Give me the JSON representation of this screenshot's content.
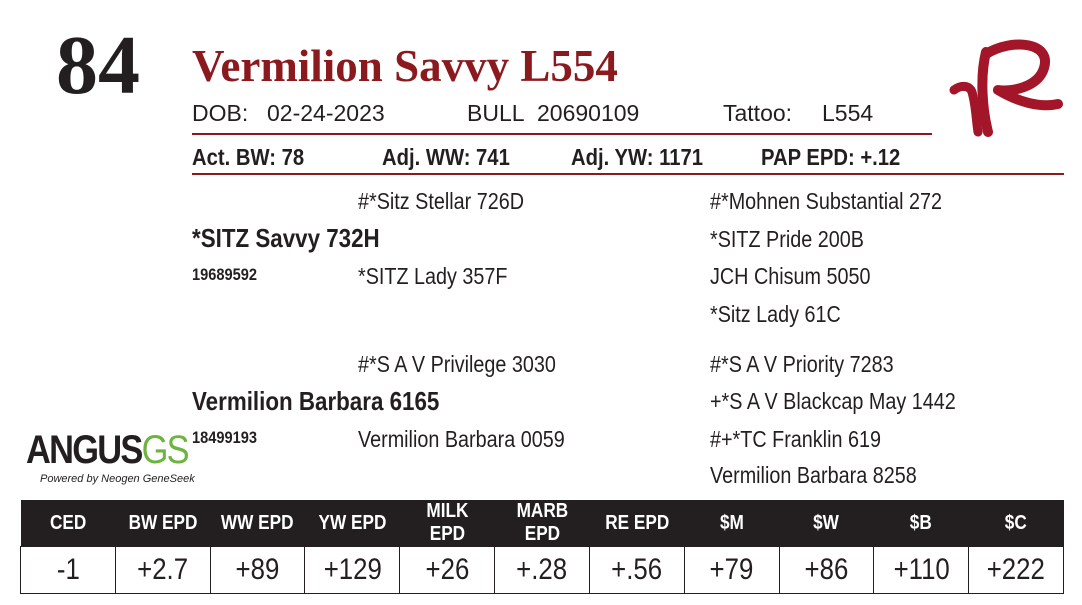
{
  "lot_number": "84",
  "animal_name": "Vermilion Savvy L554",
  "info": {
    "dob_label": "DOB:",
    "dob": "02-24-2023",
    "sex": "BULL",
    "registration": "20690109",
    "tattoo_label": "Tattoo:",
    "tattoo": "L554"
  },
  "stats": {
    "act_bw": "Act. BW: 78",
    "adj_ww": "Adj. WW: 741",
    "adj_yw": "Adj. YW: 1171",
    "pap_epd": "PAP EPD: +.12"
  },
  "pedigree": {
    "sire": {
      "name": "*SITZ Savvy 732H",
      "registration": "19689592",
      "sire": "#*Sitz Stellar 726D",
      "dam": "*SITZ Lady 357F",
      "sire_sire": "#*Mohnen Substantial 272",
      "sire_dam": "*SITZ Pride 200B",
      "dam_sire": "JCH Chisum 5050",
      "dam_dam": "*Sitz Lady 61C"
    },
    "dam": {
      "name": "Vermilion Barbara 6165",
      "registration": "18499193",
      "sire": "#*S A V Privilege 3030",
      "dam": "Vermilion Barbara 0059",
      "sire_sire": "#*S A V Priority 7283",
      "sire_dam": "+*S A V Blackcap May 1442",
      "dam_sire": "#+*TC Franklin 619",
      "dam_dam": "Vermilion Barbara 8258"
    }
  },
  "logo": {
    "part1": "ANGUS",
    "part2": "GS",
    "tagline": "Powered by Neogen GeneSeek",
    "colors": {
      "black": "#231f20",
      "green": "#6cb33f"
    }
  },
  "brand_mark": {
    "icon": "vr-brand-logo",
    "color": "#a3162a"
  },
  "epd_table": {
    "headers": [
      "CED",
      "BW EPD",
      "WW EPD",
      "YW EPD",
      "MILK EPD",
      "MARB EPD",
      "RE EPD",
      "$M",
      "$W",
      "$B",
      "$C"
    ],
    "values": [
      "-1",
      "+2.7",
      "+89",
      "+129",
      "+26",
      "+.28",
      "+.56",
      "+79",
      "+86",
      "+110",
      "+222"
    ]
  },
  "colors": {
    "accent": "#8b1a1f",
    "text": "#231f20",
    "header_bg": "#231f20"
  }
}
